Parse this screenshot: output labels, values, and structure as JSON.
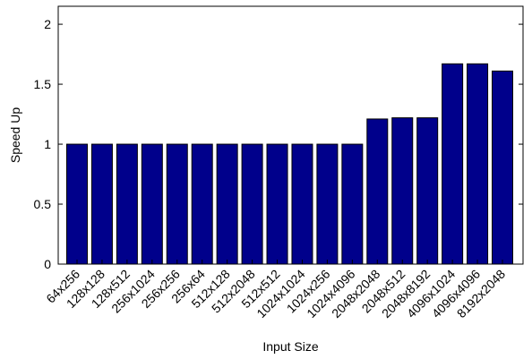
{
  "chart_data": {
    "type": "bar",
    "title": "",
    "xlabel": "Input Size",
    "ylabel": "Speed Up",
    "ylim": [
      0,
      2.15
    ],
    "yticks": [
      "0",
      "0.5",
      "1",
      "1.5",
      "2"
    ],
    "ytick_values": [
      0,
      0.5,
      1,
      1.5,
      2
    ],
    "grid": false,
    "bar_color": "#00008B",
    "categories": [
      "64x256",
      "128x128",
      "128x512",
      "256x1024",
      "256x256",
      "256x64",
      "512x128",
      "512x2048",
      "512x512",
      "1024x1024",
      "1024x256",
      "1024x4096",
      "2048x2048",
      "2048x512",
      "2048x8192",
      "4096x1024",
      "4096x4096",
      "8192x2048"
    ],
    "values": [
      1.0,
      1.0,
      1.0,
      1.0,
      1.0,
      1.0,
      1.0,
      1.0,
      1.0,
      1.0,
      1.0,
      1.0,
      1.21,
      1.22,
      1.22,
      1.67,
      1.67,
      1.61
    ]
  }
}
